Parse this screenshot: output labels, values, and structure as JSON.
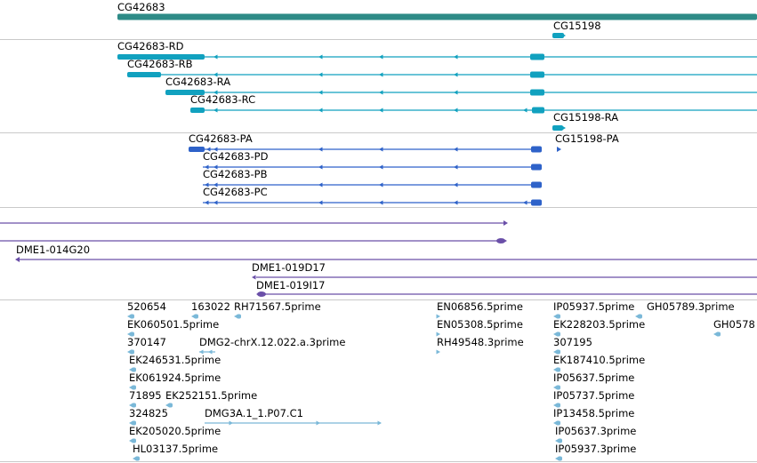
{
  "colors": {
    "gene": "#2e8b87",
    "transcript": "#11a1bf",
    "protein": "#2e62c9",
    "clone": "#6a4fa8",
    "est": "#7ab8d8",
    "separator": "#c9c9c9"
  },
  "tracks": {
    "gene": {
      "labels": [
        "CG42683",
        "CG15198"
      ]
    },
    "transcripts": {
      "labels": [
        "CG42683-RD",
        "CG42683-RB",
        "CG42683-RA",
        "CG42683-RC",
        "CG15198-RA"
      ]
    },
    "proteins": {
      "labels": [
        "CG42683-PA",
        "CG42683-PD",
        "CG42683-PB",
        "CG42683-PC",
        "CG15198-PA"
      ]
    },
    "clones": {
      "labels": [
        "DME1-014G20",
        "DME1-019D17",
        "DME1-019I17"
      ]
    },
    "ests": {
      "labels": [
        "520654",
        "163022",
        "RH71567.5prime",
        "EK060501.5prime",
        "370147",
        "DMG2-chrX.12.022.a.3prime",
        "EK246531.5prime",
        "EK061924.5prime",
        "71895",
        "EK252151.5prime",
        "324825",
        "DMG3A.1_1.P07.C1",
        "EK205020.5prime",
        "HL03137.5prime",
        "EN06856.5prime",
        "EN05308.5prime",
        "RH49548.3prime",
        "IP05937.5prime",
        "GH05789.3prime",
        "EK228203.5prime",
        "GH0578",
        "307195",
        "EK187410.5prime",
        "IP05637.5prime",
        "IP05737.5prime",
        "IP13458.5prime",
        "IP05637.3prime",
        "IP05937.3prime"
      ]
    }
  }
}
